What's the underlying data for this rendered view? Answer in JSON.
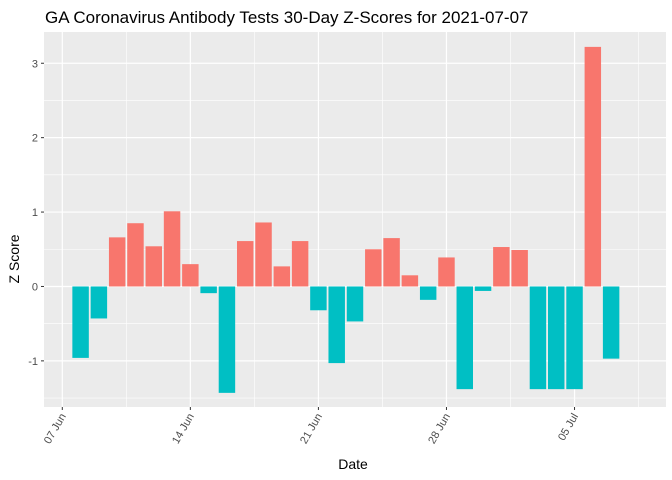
{
  "chart_data": {
    "type": "bar",
    "title": "GA Coronavirus Antibody Tests 30-Day Z-Scores for 2021-07-07",
    "xlabel": "Date",
    "ylabel": "Z Score",
    "ylim": [
      -1.62,
      3.42
    ],
    "y_ticks": [
      -1,
      0,
      1,
      2,
      3
    ],
    "x_ticks": [
      {
        "label": "07 Jun",
        "date": "2021-06-07"
      },
      {
        "label": "14 Jun",
        "date": "2021-06-14"
      },
      {
        "label": "21 Jun",
        "date": "2021-06-21"
      },
      {
        "label": "28 Jun",
        "date": "2021-06-28"
      },
      {
        "label": "05 Jul",
        "date": "2021-07-05"
      }
    ],
    "xlim": [
      "2021-06-06",
      "2021-07-10"
    ],
    "grid": true,
    "legend": "none",
    "colors": {
      "positive": "#F8766D",
      "negative": "#00BFC4",
      "panel": "#EBEBEB",
      "grid": "#FFFFFF"
    },
    "dates": [
      "2021-06-08",
      "2021-06-09",
      "2021-06-10",
      "2021-06-11",
      "2021-06-12",
      "2021-06-13",
      "2021-06-14",
      "2021-06-15",
      "2021-06-16",
      "2021-06-17",
      "2021-06-18",
      "2021-06-19",
      "2021-06-20",
      "2021-06-21",
      "2021-06-22",
      "2021-06-23",
      "2021-06-24",
      "2021-06-25",
      "2021-06-26",
      "2021-06-27",
      "2021-06-28",
      "2021-06-29",
      "2021-06-30",
      "2021-07-01",
      "2021-07-02",
      "2021-07-03",
      "2021-07-04",
      "2021-07-05",
      "2021-07-06",
      "2021-07-07"
    ],
    "values": [
      -0.96,
      -0.43,
      0.66,
      0.85,
      0.54,
      1.01,
      0.3,
      -0.09,
      -1.43,
      0.61,
      0.86,
      0.27,
      0.61,
      -0.32,
      -1.03,
      -0.47,
      0.5,
      0.65,
      0.15,
      -0.18,
      0.39,
      -1.38,
      -0.06,
      0.53,
      0.49,
      -1.38,
      -1.38,
      -1.38,
      3.22,
      -0.97
    ]
  }
}
